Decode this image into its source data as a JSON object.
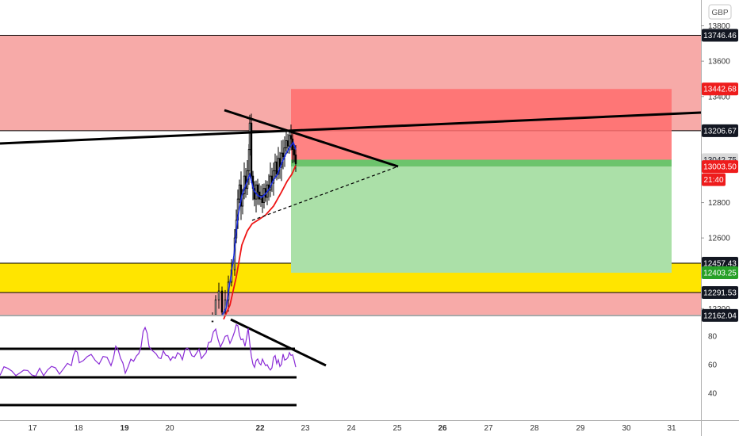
{
  "currency": "GBP",
  "chart_data": [
    {
      "type": "candlestick",
      "title": "",
      "currency": "GBP",
      "x_axis": {
        "ticks": [
          "17",
          "18",
          "19",
          "20",
          "22",
          "23",
          "24",
          "25",
          "26",
          "27",
          "28",
          "29",
          "30",
          "31"
        ]
      },
      "y_axis": {
        "ticks": [
          13800,
          13600,
          13400,
          13200,
          12800,
          12600,
          12400,
          12200
        ],
        "ylim": [
          12162,
          13860
        ]
      },
      "price_badges": [
        {
          "label": "13746.46",
          "value": 13746.46,
          "style": "dark"
        },
        {
          "label": "13442.68",
          "value": 13442.68,
          "style": "red"
        },
        {
          "label": "13206.67",
          "value": 13206.67,
          "style": "dark"
        },
        {
          "label": "13042.75",
          "value": 13042.75,
          "style": "grey"
        },
        {
          "label": "13003.50",
          "value": 13003.5,
          "style": "red"
        },
        {
          "label": "21:40",
          "value": 12930,
          "style": "red"
        },
        {
          "label": "12457.43",
          "value": 12457.43,
          "style": "dark"
        },
        {
          "label": "12403.25",
          "value": 12403.25,
          "style": "green"
        },
        {
          "label": "12291.53",
          "value": 12291.53,
          "style": "dark"
        },
        {
          "label": "12162.04",
          "value": 12162.04,
          "style": "dark"
        }
      ],
      "zones": [
        {
          "name": "supply-zone",
          "from": 13206.67,
          "to": 13746.46,
          "color": "#f7aaa8"
        },
        {
          "name": "demand-zone-yellow",
          "from": 12291.53,
          "to": 12457.43,
          "color": "#ffe500"
        },
        {
          "name": "demand-zone-red",
          "from": 12162.04,
          "to": 12291.53,
          "color": "#f7aaa8"
        }
      ],
      "position": {
        "type": "short",
        "entry": 13003.5,
        "stop": 13442.68,
        "target": 12403.25,
        "stop_color": "#ff6d6d",
        "target_color": "#abe0a8",
        "entry_band_color": "#6cc46c"
      },
      "series": [
        {
          "type": "candles",
          "color": "#000000"
        },
        {
          "type": "moving-average",
          "color": "#1a2de0"
        },
        {
          "type": "moving-average",
          "color": "#ee1515"
        }
      ]
    },
    {
      "type": "line",
      "title": "",
      "y_axis": {
        "ticks": [
          80,
          60,
          40
        ],
        "ylim": [
          26,
          96
        ]
      },
      "series": [
        {
          "type": "oscillator",
          "color": "#8a2bd6"
        }
      ],
      "levels": [
        70,
        50,
        30
      ]
    }
  ]
}
